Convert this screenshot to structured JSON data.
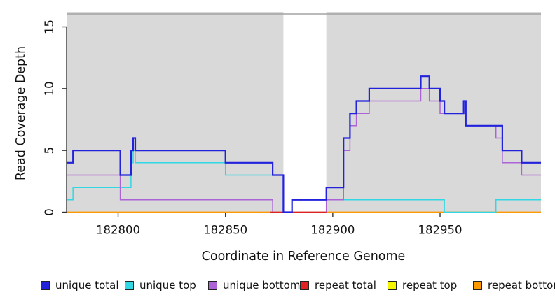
{
  "chart_data": {
    "type": "line",
    "step": true,
    "title": "",
    "xlabel": "Coordinate in Reference Genome",
    "ylabel": "Read Coverage Depth",
    "xlim": [
      182776,
      182997
    ],
    "ylim": [
      0,
      16.2
    ],
    "x_ticks": [
      182800,
      182850,
      182900,
      182950
    ],
    "y_ticks": [
      0,
      5,
      10,
      15
    ],
    "grid": false,
    "panel_background": "#d9d9d9",
    "panel_top_border": "#a3a3a3",
    "shaded_regions": [
      [
        182776,
        182877
      ],
      [
        182897,
        182997
      ]
    ],
    "gap_region": [
      182877,
      182897
    ],
    "legend_position": "bottom",
    "series": [
      {
        "name": "unique total",
        "color": "#2222dd",
        "width": 2.2,
        "z": 6,
        "points": [
          [
            182776,
            4
          ],
          [
            182779,
            5
          ],
          [
            182801,
            3
          ],
          [
            182806,
            5
          ],
          [
            182807,
            6
          ],
          [
            182808,
            5
          ],
          [
            182850,
            4
          ],
          [
            182872,
            3
          ],
          [
            182877,
            0
          ],
          [
            182881,
            1
          ],
          [
            182897,
            2
          ],
          [
            182905,
            6
          ],
          [
            182908,
            8
          ],
          [
            182911,
            9
          ],
          [
            182917,
            10
          ],
          [
            182941,
            11
          ],
          [
            182945,
            10
          ],
          [
            182950,
            9
          ],
          [
            182952,
            8
          ],
          [
            182961,
            9
          ],
          [
            182962,
            7
          ],
          [
            182979,
            5
          ],
          [
            182988,
            4
          ],
          [
            182997,
            4
          ]
        ]
      },
      {
        "name": "unique top",
        "color": "#2fd8e4",
        "width": 1.5,
        "z": 3,
        "points": [
          [
            182776,
            1
          ],
          [
            182779,
            2
          ],
          [
            182806,
            4
          ],
          [
            182807,
            5
          ],
          [
            182808,
            4
          ],
          [
            182850,
            3
          ],
          [
            182877,
            0
          ],
          [
            182881,
            1
          ],
          [
            182952,
            0
          ],
          [
            182976,
            1
          ],
          [
            182997,
            1
          ]
        ]
      },
      {
        "name": "unique bottom",
        "color": "#ab63d6",
        "width": 1.5,
        "z": 4,
        "points": [
          [
            182776,
            3
          ],
          [
            182801,
            1
          ],
          [
            182872,
            0
          ],
          [
            182897,
            1
          ],
          [
            182905,
            5
          ],
          [
            182908,
            7
          ],
          [
            182911,
            8
          ],
          [
            182917,
            9
          ],
          [
            182941,
            10
          ],
          [
            182945,
            9
          ],
          [
            182950,
            8
          ],
          [
            182961,
            9
          ],
          [
            182962,
            7
          ],
          [
            182976,
            6
          ],
          [
            182979,
            4
          ],
          [
            182988,
            3
          ],
          [
            182997,
            3
          ]
        ]
      },
      {
        "name": "repeat total",
        "color": "#e02222",
        "width": 1.6,
        "z": 5,
        "points": [
          [
            182871,
            0
          ],
          [
            182897,
            0
          ]
        ]
      },
      {
        "name": "repeat top",
        "color": "#f5f500",
        "width": 1.4,
        "z": 1,
        "points": [
          [
            182871,
            0
          ],
          [
            182897,
            0
          ]
        ]
      },
      {
        "name": "repeat bottom",
        "color": "#ff9900",
        "width": 1.8,
        "z": 2,
        "points": [
          [
            182776,
            0
          ],
          [
            182997,
            0
          ]
        ]
      }
    ]
  },
  "legend": [
    {
      "label": "unique total",
      "color": "#2222dd"
    },
    {
      "label": "unique top",
      "color": "#2fd8e4"
    },
    {
      "label": "unique bottom",
      "color": "#ab63d6"
    },
    {
      "label": "repeat total",
      "color": "#e02222"
    },
    {
      "label": "repeat top",
      "color": "#f5f500"
    },
    {
      "label": "repeat bottom",
      "color": "#ff9900"
    }
  ]
}
